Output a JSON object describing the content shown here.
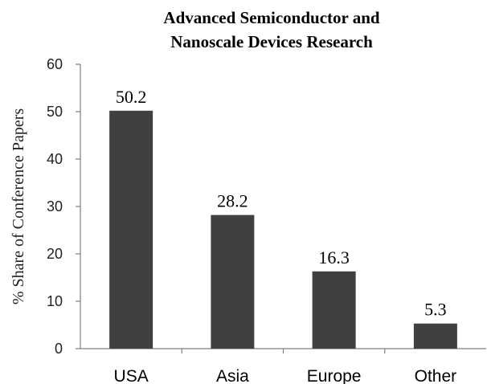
{
  "chart_data": {
    "type": "bar",
    "title_lines": [
      "Advanced Semiconductor and",
      "Nanoscale Devices Research"
    ],
    "xlabel": "",
    "ylabel": "% Share of Conference Papers",
    "categories": [
      "USA",
      "Asia",
      "Europe",
      "Other"
    ],
    "values": [
      50.2,
      28.2,
      16.3,
      5.3
    ],
    "data_labels": [
      "50.2",
      "28.2",
      "16.3",
      "5.3"
    ],
    "ylim": [
      0,
      60
    ],
    "yticks": [
      0,
      10,
      20,
      30,
      40,
      50,
      60
    ],
    "grid": false,
    "legend": "none",
    "bar_color": "#404040",
    "axis_color": "#7f7f7f"
  }
}
